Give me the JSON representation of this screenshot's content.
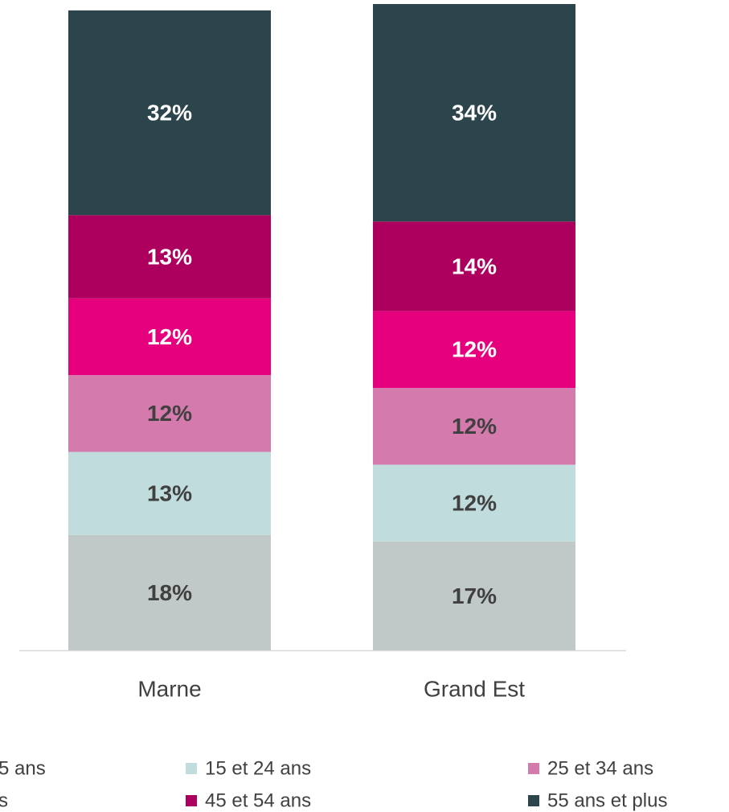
{
  "chart_data": {
    "type": "stacked_bar",
    "categories": [
      "Marne",
      "Grand Est"
    ],
    "ylim": [
      0,
      101
    ],
    "series": [
      {
        "name": "5 ans",
        "color": "#c0c8c8",
        "label_color": "#404040",
        "values": [
          18,
          17
        ],
        "value_labels": [
          "18%",
          "17%"
        ]
      },
      {
        "name": "15 et 24 ans",
        "color": "#c0dcdc",
        "label_color": "#404040",
        "values": [
          13,
          12
        ],
        "value_labels": [
          "13%",
          "12%"
        ]
      },
      {
        "name": "25 et 34 ans",
        "color": "#d57aad",
        "label_color": "#404040",
        "values": [
          12,
          12
        ],
        "value_labels": [
          "12%",
          "12%"
        ]
      },
      {
        "name": "s",
        "color": "#e6007e",
        "label_color": "#ffffff",
        "values": [
          12,
          12
        ],
        "value_labels": [
          "12%",
          "12%"
        ]
      },
      {
        "name": "45 et 54 ans",
        "color": "#ad005e",
        "label_color": "#ffffff",
        "values": [
          13,
          14
        ],
        "value_labels": [
          "13%",
          "14%"
        ]
      },
      {
        "name": "55 ans et plus",
        "color": "#2c444b",
        "label_color": "#ffffff",
        "values": [
          32,
          34
        ],
        "value_labels": [
          "32%",
          "34%"
        ]
      }
    ]
  }
}
